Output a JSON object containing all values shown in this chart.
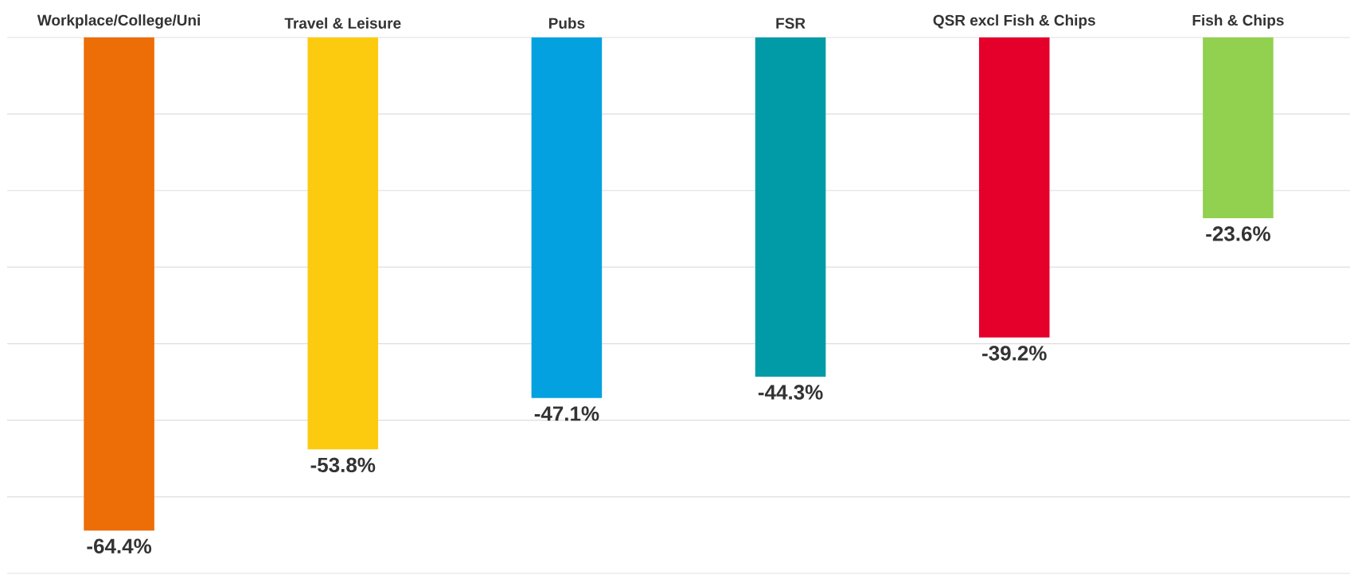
{
  "chart_data": {
    "type": "bar",
    "categories": [
      "Workplace/College/Uni",
      "Travel & Leisure",
      "Pubs",
      "FSR",
      "QSR excl Fish & Chips",
      "Fish & Chips"
    ],
    "values": [
      -64.4,
      -53.8,
      -47.1,
      -44.3,
      -39.2,
      -23.6
    ],
    "colors": [
      "#ed6d07",
      "#fccb0f",
      "#04a1e0",
      "#009ba6",
      "#e4002b",
      "#92d050"
    ],
    "value_labels": [
      "-64.4%",
      "-53.8%",
      "-47.1%",
      "-44.3%",
      "-39.2%",
      "-23.6%"
    ],
    "ylim": [
      -70,
      0
    ],
    "yticks": [
      {
        "value": -70,
        "label": null
      },
      {
        "value": -60,
        "label": null
      },
      {
        "value": -50,
        "label": null
      },
      {
        "value": -40,
        "label": null
      },
      {
        "value": -30,
        "label": null
      },
      {
        "value": -20,
        "label": null
      },
      {
        "value": -10,
        "label": null
      },
      {
        "value": 0,
        "label": null
      }
    ],
    "grid": "y",
    "tick_labels": "x"
  }
}
